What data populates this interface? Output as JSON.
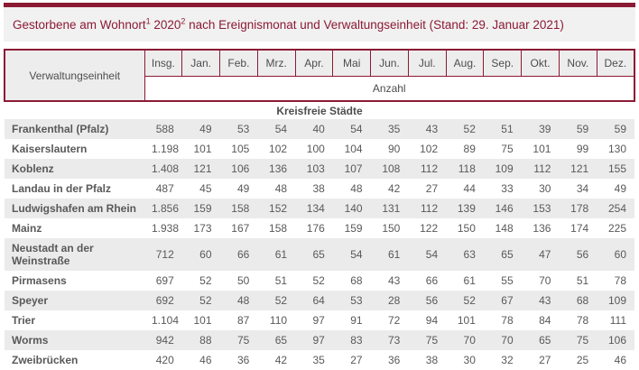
{
  "colors": {
    "accent": "#8b1a35",
    "header_bg": "#ededed",
    "stripe_bg": "#ebebeb",
    "title_bg": "#f1f1f1",
    "text": "#595959"
  },
  "title": {
    "part1": "Gestorbene am Wohnort",
    "sup1": "1",
    "part2": " 2020",
    "sup2": "2",
    "part3": " nach Ereignismonat und Verwaltungseinheit (Stand: 29. Januar 2021)"
  },
  "table": {
    "row_header": "Verwaltungseinheit",
    "month_columns": [
      "Insg.",
      "Jan.",
      "Feb.",
      "Mrz.",
      "Apr.",
      "Mai",
      "Jun.",
      "Jul.",
      "Aug.",
      "Sep.",
      "Okt.",
      "Nov.",
      "Dez."
    ],
    "unit_label": "Anzahl",
    "section": "Kreisfreie Städte",
    "rows": [
      {
        "name": "Frankenthal (Pfalz)",
        "values": [
          "588",
          "49",
          "53",
          "54",
          "40",
          "54",
          "35",
          "43",
          "52",
          "51",
          "39",
          "59",
          "59"
        ]
      },
      {
        "name": "Kaiserslautern",
        "values": [
          "1.198",
          "101",
          "105",
          "102",
          "100",
          "104",
          "90",
          "102",
          "89",
          "75",
          "101",
          "99",
          "130"
        ]
      },
      {
        "name": "Koblenz",
        "values": [
          "1.408",
          "121",
          "106",
          "136",
          "103",
          "107",
          "108",
          "112",
          "118",
          "109",
          "112",
          "121",
          "155"
        ]
      },
      {
        "name": "Landau in der Pfalz",
        "values": [
          "487",
          "45",
          "49",
          "48",
          "38",
          "48",
          "42",
          "27",
          "44",
          "33",
          "30",
          "34",
          "49"
        ]
      },
      {
        "name": "Ludwigshafen am Rhein",
        "values": [
          "1.856",
          "159",
          "158",
          "152",
          "134",
          "140",
          "131",
          "112",
          "139",
          "146",
          "153",
          "178",
          "254"
        ]
      },
      {
        "name": "Mainz",
        "values": [
          "1.938",
          "173",
          "167",
          "158",
          "176",
          "159",
          "150",
          "122",
          "150",
          "148",
          "136",
          "174",
          "225"
        ]
      },
      {
        "name": "Neustadt an der Weinstraße",
        "values": [
          "712",
          "60",
          "66",
          "61",
          "65",
          "54",
          "61",
          "54",
          "63",
          "65",
          "47",
          "56",
          "60"
        ]
      },
      {
        "name": "Pirmasens",
        "values": [
          "697",
          "52",
          "50",
          "51",
          "52",
          "68",
          "43",
          "66",
          "61",
          "55",
          "70",
          "51",
          "78"
        ]
      },
      {
        "name": "Speyer",
        "values": [
          "692",
          "52",
          "48",
          "52",
          "64",
          "53",
          "28",
          "56",
          "52",
          "67",
          "43",
          "68",
          "109"
        ]
      },
      {
        "name": "Trier",
        "values": [
          "1.104",
          "101",
          "87",
          "110",
          "97",
          "91",
          "72",
          "94",
          "101",
          "78",
          "84",
          "78",
          "111"
        ]
      },
      {
        "name": "Worms",
        "values": [
          "942",
          "88",
          "75",
          "65",
          "97",
          "83",
          "73",
          "75",
          "70",
          "70",
          "65",
          "75",
          "106"
        ]
      },
      {
        "name": "Zweibrücken",
        "values": [
          "420",
          "46",
          "36",
          "42",
          "35",
          "27",
          "36",
          "38",
          "30",
          "32",
          "27",
          "25",
          "46"
        ]
      }
    ]
  }
}
